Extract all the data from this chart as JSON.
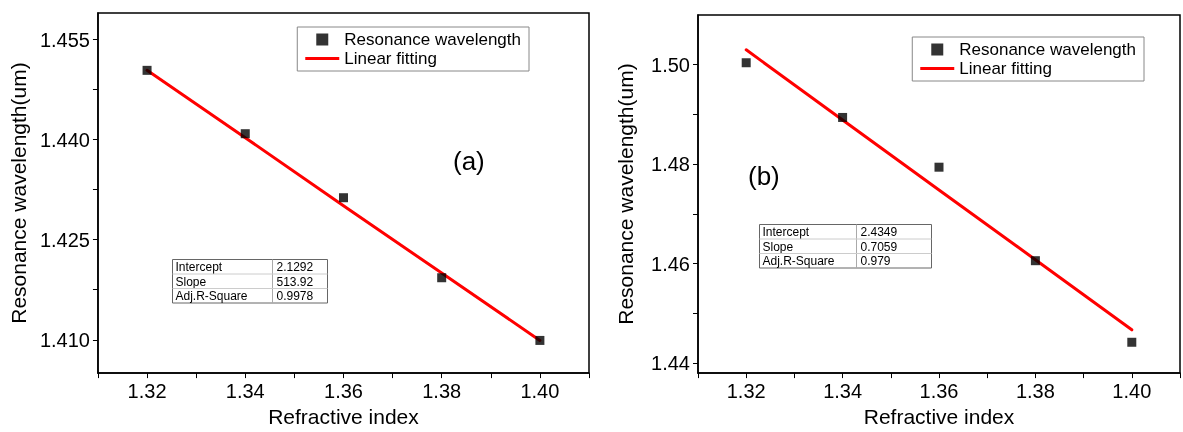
{
  "chart_data": [
    {
      "type": "scatter",
      "xlabel": "Refractive index",
      "ylabel": "Resonance wavelength(um)",
      "x": [
        1.32,
        1.34,
        1.36,
        1.38,
        1.4
      ],
      "series": [
        {
          "name": "Resonance wavelength",
          "marker": "square",
          "color": "#000000",
          "values": [
            1.4504,
            1.4409,
            1.4313,
            1.4193,
            1.4099
          ]
        },
        {
          "name": "Linear fitting",
          "type": "line",
          "marker": "none",
          "line_style": "solid",
          "color": "#ff0000",
          "values": [
            1.4504,
            1.4403,
            1.4301,
            1.42,
            1.4099
          ]
        }
      ],
      "xlim": [
        1.31,
        1.41
      ],
      "xticks": [
        {
          "value": 1.31,
          "label": null
        },
        1.32,
        {
          "value": 1.33,
          "label": null
        },
        1.34,
        {
          "value": 1.35,
          "label": null
        },
        1.36,
        {
          "value": 1.37,
          "label": null
        },
        1.38,
        {
          "value": 1.39,
          "label": null
        },
        {
          "value": 1.4,
          "label": "1.40"
        },
        {
          "value": 1.41,
          "label": null
        }
      ],
      "ylim": [
        1.405,
        1.459
      ],
      "yticks": [
        {
          "value": 1.41,
          "label": "1.410"
        },
        {
          "value": 1.4175,
          "label": null
        },
        1.425,
        {
          "value": 1.4325,
          "label": null
        },
        {
          "value": 1.44,
          "label": "1.440"
        },
        {
          "value": 1.4475,
          "label": null
        },
        1.455
      ],
      "annotations": [
        "(a)",
        "Intercept",
        "2.1292",
        "Slope",
        "513.92",
        "Adj.R-Square",
        "0.9978"
      ],
      "legend": "top right",
      "grid": false
    },
    {
      "type": "scatter",
      "xlabel": "Refractive index",
      "ylabel": "Resonance wavelength(um)",
      "x": [
        1.32,
        1.34,
        1.36,
        1.38,
        1.4
      ],
      "series": [
        {
          "name": "Resonance wavelength",
          "marker": "square",
          "color": "#000000",
          "values": [
            1.5004,
            1.4894,
            1.4794,
            1.4606,
            1.4442
          ]
        },
        {
          "name": "Linear fitting",
          "type": "line",
          "marker": "none",
          "line_style": "solid",
          "color": "#ff0000",
          "values": [
            1.503,
            1.4889,
            1.4748,
            1.4608,
            1.4467
          ]
        }
      ],
      "xlim": [
        1.31,
        1.41
      ],
      "xticks": [
        {
          "value": 1.31,
          "label": null
        },
        1.32,
        {
          "value": 1.33,
          "label": null
        },
        1.34,
        {
          "value": 1.35,
          "label": null
        },
        1.36,
        {
          "value": 1.37,
          "label": null
        },
        1.38,
        {
          "value": 1.39,
          "label": null
        },
        {
          "value": 1.4,
          "label": "1.40"
        },
        {
          "value": 1.41,
          "label": null
        }
      ],
      "ylim": [
        1.438,
        1.51
      ],
      "yticks": [
        1.44,
        {
          "value": 1.45,
          "label": null
        },
        1.46,
        {
          "value": 1.47,
          "label": null
        },
        1.48,
        {
          "value": 1.49,
          "label": null
        },
        {
          "value": 1.5,
          "label": "1.50"
        }
      ],
      "annotations": [
        "(b)",
        "Intercept",
        "2.4349",
        "Slope",
        "0.7059",
        "Adj.R-Square",
        "0.979"
      ],
      "legend": "top right",
      "grid": false
    }
  ]
}
